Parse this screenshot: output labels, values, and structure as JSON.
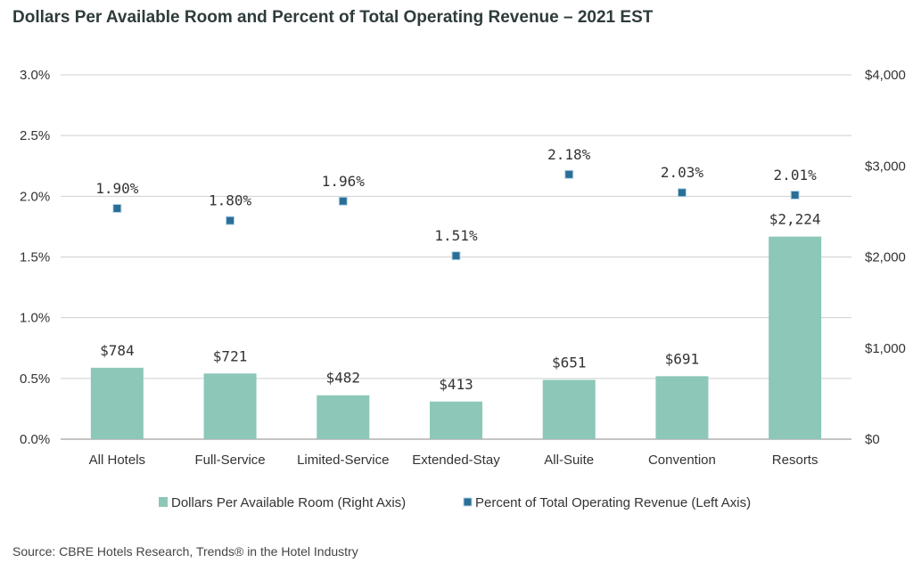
{
  "title": "Dollars Per Available Room and Percent of Total Operating Revenue – 2021 EST",
  "source": "Source: CBRE Hotels Research, Trends® in the Hotel Industry",
  "colors": {
    "bar": "#8cc7b8",
    "marker": "#2a6e96",
    "marker_light": "#b8d6ea",
    "grid": "#cfcfcf",
    "axis": "#888888"
  },
  "chart_data": {
    "type": "bar",
    "categories": [
      "All Hotels",
      "Full-Service",
      "Limited-Service",
      "Extended-Stay",
      "All-Suite",
      "Convention",
      "Resorts"
    ],
    "series": [
      {
        "name": "Dollars Per Available Room (Right Axis)",
        "type": "bar",
        "axis": "right",
        "values": [
          784,
          721,
          482,
          413,
          651,
          691,
          2224
        ],
        "labels": [
          "$784",
          "$721",
          "$482",
          "$413",
          "$651",
          "$691",
          "$2,224"
        ]
      },
      {
        "name": "Percent of Total Operating Revenue (Left Axis)",
        "type": "scatter",
        "axis": "left",
        "values": [
          1.9,
          1.8,
          1.96,
          1.51,
          2.18,
          2.03,
          2.01
        ],
        "labels": [
          "1.90%",
          "1.80%",
          "1.96%",
          "1.51%",
          "2.18%",
          "2.03%",
          "2.01%"
        ]
      }
    ],
    "left_axis": {
      "range": [
        0,
        3.0
      ],
      "ticks": [
        0,
        0.5,
        1.0,
        1.5,
        2.0,
        2.5,
        3.0
      ],
      "tick_labels": [
        "0.0%",
        "0.5%",
        "1.0%",
        "1.5%",
        "2.0%",
        "2.5%",
        "3.0%"
      ]
    },
    "right_axis": {
      "range": [
        0,
        4000
      ],
      "ticks": [
        0,
        1000,
        2000,
        3000,
        4000
      ],
      "tick_labels": [
        "$0",
        "$1,000",
        "$2,000",
        "$3,000",
        "$4,000"
      ]
    },
    "grid": true,
    "legend_position": "bottom"
  }
}
